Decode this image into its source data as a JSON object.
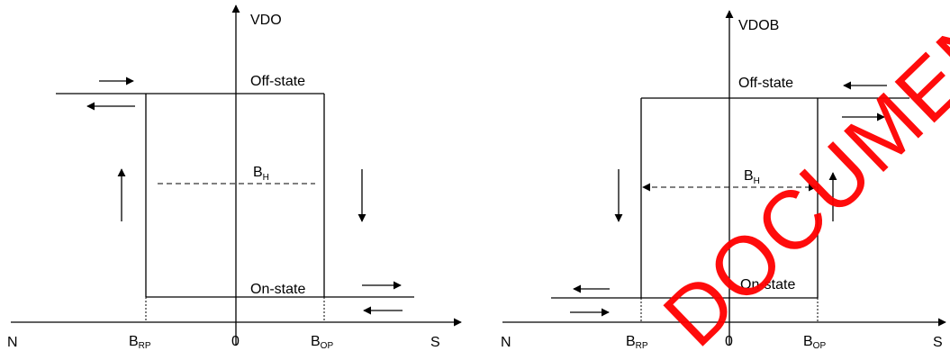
{
  "left": {
    "y_axis_label": "VDO",
    "off_state": "Off-state",
    "on_state": "On-state",
    "hysteresis_main": "B",
    "hysteresis_sub": "H",
    "x_left": "N",
    "x_right": "S",
    "release_main": "B",
    "release_sub": "RP",
    "origin": "0",
    "operate_main": "B",
    "operate_sub": "OP"
  },
  "right": {
    "y_axis_label": "VDOB",
    "off_state": "Off-state",
    "on_state": "On-state",
    "hysteresis_main": "B",
    "hysteresis_sub": "H",
    "x_left": "N",
    "x_right": "S",
    "release_main": "B",
    "release_sub": "RP",
    "origin": "0",
    "operate_main": "B",
    "operate_sub": "OP"
  },
  "watermark": "DOCUMENT",
  "colors": {
    "lines": "#000000",
    "watermark": "#ff0000"
  }
}
